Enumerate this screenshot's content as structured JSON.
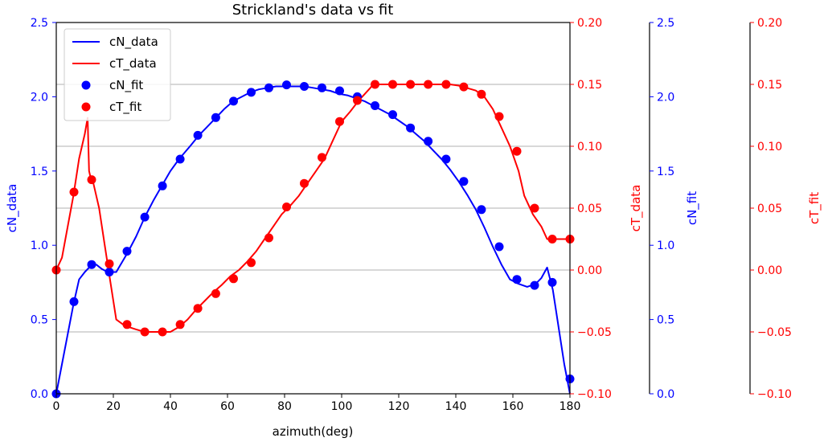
{
  "chart_data": {
    "type": "line",
    "title": "Strickland's data vs fit",
    "xlabel": "azimuth(deg)",
    "xlim": [
      0,
      180
    ],
    "xticks": [
      0,
      20,
      40,
      60,
      80,
      100,
      120,
      140,
      160,
      180
    ],
    "grid": "horizontal",
    "legend_placement": "top-left",
    "colors": {
      "blue": "#0000ff",
      "red": "#ff0000"
    },
    "axes": [
      {
        "id": "cN_data",
        "label": "cN_data",
        "color": "#0000ff",
        "side": "left",
        "ylim": [
          0,
          2.5
        ],
        "ticks": [
          "0.0",
          "0.5",
          "1.0",
          "1.5",
          "2.0",
          "2.5"
        ]
      },
      {
        "id": "cT_data",
        "label": "cT_data",
        "color": "#ff0000",
        "side": "right",
        "ylim": [
          -0.1,
          0.2
        ],
        "ticks": [
          "−0.10",
          "−0.05",
          "0.00",
          "0.05",
          "0.10",
          "0.15",
          "0.20"
        ]
      },
      {
        "id": "cN_fit",
        "label": "cN_fit",
        "color": "#0000ff",
        "side": "right",
        "ylim": [
          0,
          2.5
        ],
        "ticks": [
          "0.0",
          "0.5",
          "1.0",
          "1.5",
          "2.0",
          "2.5"
        ]
      },
      {
        "id": "cT_fit",
        "label": "cT_fit",
        "color": "#ff0000",
        "side": "right",
        "ylim": [
          -0.1,
          0.2
        ],
        "ticks": [
          "−0.10",
          "−0.05",
          "0.00",
          "0.05",
          "0.10",
          "0.15",
          "0.20"
        ]
      }
    ],
    "series": [
      {
        "name": "cN_data",
        "axis": "cN_data",
        "style": "line",
        "color": "#0000ff",
        "x": [
          0,
          2,
          4,
          6,
          8,
          10,
          12,
          14,
          16,
          18,
          21,
          25,
          28,
          31,
          34,
          37,
          40,
          43,
          47,
          50,
          53,
          56,
          59,
          62,
          65,
          68,
          71,
          74,
          77,
          80,
          83,
          87,
          90,
          93,
          96,
          99,
          102,
          105,
          108,
          111,
          114,
          117,
          120,
          123,
          126,
          129,
          132,
          135,
          138,
          141,
          144,
          147,
          150,
          153,
          156,
          159,
          162,
          165,
          168,
          170,
          172,
          174,
          176,
          178,
          180
        ],
        "y": [
          0,
          0.2,
          0.4,
          0.6,
          0.77,
          0.82,
          0.86,
          0.87,
          0.84,
          0.82,
          0.82,
          0.95,
          1.06,
          1.19,
          1.3,
          1.4,
          1.5,
          1.58,
          1.67,
          1.74,
          1.8,
          1.86,
          1.92,
          1.97,
          2.0,
          2.03,
          2.05,
          2.06,
          2.07,
          2.07,
          2.07,
          2.07,
          2.06,
          2.05,
          2.04,
          2.02,
          2.01,
          1.99,
          1.97,
          1.94,
          1.91,
          1.88,
          1.84,
          1.8,
          1.75,
          1.7,
          1.64,
          1.58,
          1.51,
          1.43,
          1.34,
          1.24,
          1.12,
          0.99,
          0.87,
          0.77,
          0.74,
          0.72,
          0.74,
          0.78,
          0.85,
          0.7,
          0.45,
          0.2,
          0.0
        ]
      },
      {
        "name": "cT_data",
        "axis": "cT_data",
        "style": "line",
        "color": "#ff0000",
        "x": [
          0,
          2,
          4,
          6,
          8,
          10,
          11,
          11.5,
          12,
          13,
          15,
          17,
          19,
          21,
          24,
          28,
          31,
          34,
          37,
          40,
          43,
          46,
          49,
          52,
          55,
          58,
          61,
          64,
          67,
          70,
          73,
          76,
          79,
          82,
          85,
          88,
          91,
          94,
          97,
          100,
          103,
          106,
          108,
          110,
          111,
          114,
          117,
          120,
          123,
          126,
          129,
          132,
          135,
          138,
          141,
          144,
          147,
          150,
          153,
          156,
          159,
          162,
          164,
          167,
          170,
          172,
          174,
          177,
          180
        ],
        "y": [
          0.0,
          0.01,
          0.035,
          0.06,
          0.09,
          0.11,
          0.123,
          0.08,
          0.075,
          0.07,
          0.05,
          0.02,
          -0.01,
          -0.04,
          -0.045,
          -0.048,
          -0.05,
          -0.05,
          -0.05,
          -0.05,
          -0.046,
          -0.04,
          -0.032,
          -0.025,
          -0.018,
          -0.012,
          -0.005,
          0.0,
          0.007,
          0.015,
          0.025,
          0.035,
          0.045,
          0.052,
          0.06,
          0.07,
          0.08,
          0.09,
          0.105,
          0.12,
          0.128,
          0.137,
          0.142,
          0.147,
          0.15,
          0.15,
          0.15,
          0.15,
          0.15,
          0.15,
          0.15,
          0.15,
          0.15,
          0.15,
          0.149,
          0.147,
          0.145,
          0.14,
          0.13,
          0.115,
          0.1,
          0.08,
          0.06,
          0.045,
          0.035,
          0.025,
          0.025,
          0.025,
          0.025
        ]
      },
      {
        "name": "cN_fit",
        "axis": "cN_fit",
        "style": "markers",
        "color": "#0000ff",
        "x": [
          0,
          6.2,
          12.4,
          18.6,
          24.8,
          31.0,
          37.2,
          43.4,
          49.6,
          55.9,
          62.1,
          68.3,
          74.5,
          80.7,
          86.9,
          93.1,
          99.3,
          105.5,
          111.7,
          117.9,
          124.1,
          130.3,
          136.6,
          142.8,
          149.0,
          155.2,
          161.4,
          167.6,
          173.8,
          180
        ],
        "y": [
          0.0,
          0.62,
          0.87,
          0.82,
          0.96,
          1.19,
          1.4,
          1.58,
          1.74,
          1.86,
          1.97,
          2.03,
          2.06,
          2.08,
          2.07,
          2.06,
          2.04,
          2.0,
          1.94,
          1.88,
          1.79,
          1.7,
          1.58,
          1.43,
          1.24,
          0.99,
          0.77,
          0.73,
          0.75,
          0.1
        ]
      },
      {
        "name": "cT_fit",
        "axis": "cT_fit",
        "style": "markers",
        "color": "#ff0000",
        "x": [
          0,
          6.2,
          12.4,
          18.6,
          24.8,
          31.0,
          37.2,
          43.4,
          49.6,
          55.9,
          62.1,
          68.3,
          74.5,
          80.7,
          86.9,
          93.1,
          99.3,
          105.5,
          111.7,
          117.9,
          124.1,
          130.3,
          136.6,
          142.8,
          149.0,
          155.2,
          161.4,
          167.6,
          173.8,
          180
        ],
        "y": [
          0.0,
          0.063,
          0.073,
          0.005,
          -0.044,
          -0.05,
          -0.05,
          -0.044,
          -0.031,
          -0.019,
          -0.007,
          0.006,
          0.026,
          0.051,
          0.07,
          0.091,
          0.12,
          0.137,
          0.15,
          0.15,
          0.15,
          0.15,
          0.15,
          0.148,
          0.142,
          0.124,
          0.096,
          0.05,
          0.025,
          0.025
        ]
      }
    ]
  }
}
